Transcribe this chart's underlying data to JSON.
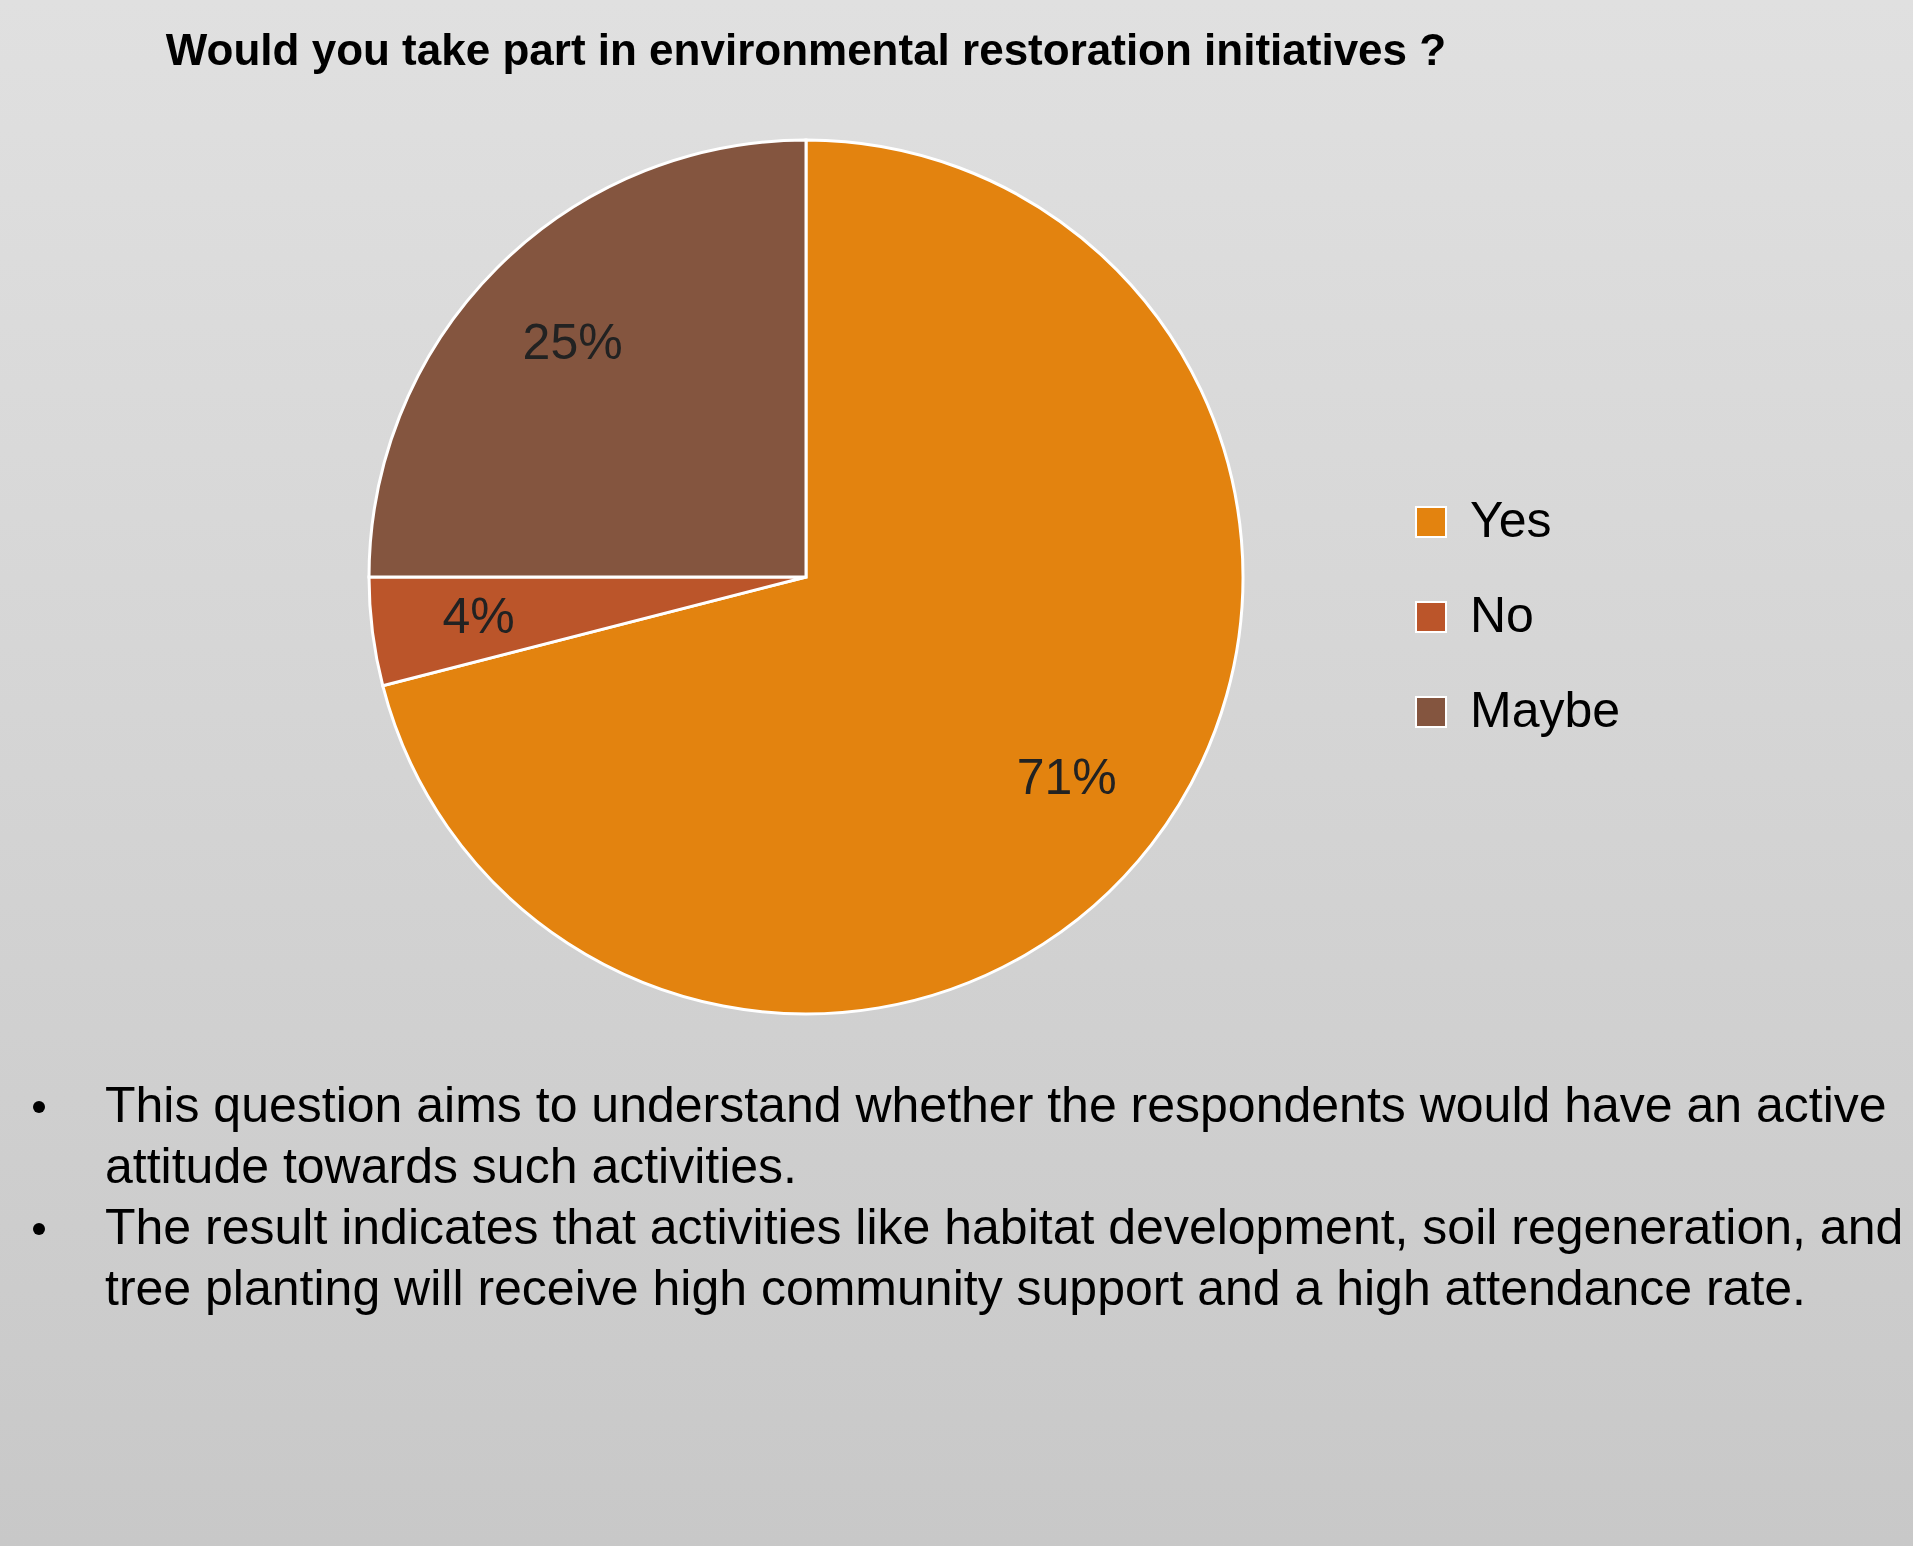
{
  "chart_data": {
    "type": "pie",
    "title": "Would you take part in environmental restoration initiatives ?",
    "categories": [
      "Yes",
      "No",
      "Maybe"
    ],
    "values": [
      71,
      4,
      25
    ],
    "colors": [
      "#e3830f",
      "#bb552a",
      "#84553f"
    ],
    "value_labels": [
      "71%",
      "4%",
      "25%"
    ],
    "legend": "right",
    "annotations": [
      "This question aims to understand whether the respondents would have an active attitude towards such activities.",
      "The result indicates that activities like habitat development, soil regeneration, and tree planting will receive high community support and a high attendance rate."
    ]
  }
}
